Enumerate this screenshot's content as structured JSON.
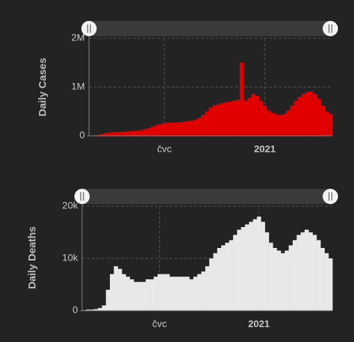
{
  "chart_data": [
    {
      "type": "bar",
      "ylabel": "Daily Cases",
      "color": "#e00000",
      "grid": true,
      "categories": [
        null,
        null,
        null,
        null,
        null,
        null,
        null,
        null,
        null,
        null,
        null,
        null,
        null,
        null,
        null,
        null,
        null,
        null,
        null,
        "čvc",
        null,
        null,
        null,
        null,
        null,
        null,
        null,
        null,
        null,
        null,
        null,
        null,
        null,
        null,
        null,
        null,
        null,
        null,
        null,
        null,
        null,
        null,
        null,
        null,
        null,
        "2021",
        null,
        null,
        null,
        null,
        null,
        null,
        null,
        null,
        null,
        null,
        null,
        null,
        null,
        null,
        null,
        null,
        null
      ],
      "values": [
        5000,
        10000,
        20000,
        40000,
        60000,
        70000,
        80000,
        80000,
        85000,
        90000,
        95000,
        100000,
        110000,
        120000,
        140000,
        160000,
        190000,
        220000,
        240000,
        260000,
        270000,
        270000,
        270000,
        280000,
        290000,
        300000,
        310000,
        330000,
        370000,
        430000,
        500000,
        580000,
        630000,
        650000,
        670000,
        690000,
        700000,
        720000,
        740000,
        1500000,
        720000,
        780000,
        860000,
        820000,
        720000,
        620000,
        520000,
        470000,
        440000,
        430000,
        450000,
        520000,
        620000,
        720000,
        800000,
        860000,
        900000,
        910000,
        860000,
        760000,
        620000,
        500000,
        450000
      ],
      "ylim": [
        0,
        2000000
      ],
      "yticks": [
        0,
        {
          "value": 1000000,
          "label": "1M"
        },
        {
          "value": 2000000,
          "label": "2M"
        }
      ]
    },
    {
      "type": "bar",
      "ylabel": "Daily Deaths",
      "color": "#e8e8e8",
      "grid": true,
      "categories": [
        null,
        null,
        null,
        null,
        null,
        null,
        null,
        null,
        null,
        null,
        null,
        null,
        null,
        null,
        null,
        null,
        null,
        null,
        null,
        "čvc",
        null,
        null,
        null,
        null,
        null,
        null,
        null,
        null,
        null,
        null,
        null,
        null,
        null,
        null,
        null,
        null,
        null,
        null,
        null,
        null,
        null,
        null,
        null,
        null,
        "2021",
        null,
        null,
        null,
        null,
        null,
        null,
        null,
        null,
        null,
        null,
        null,
        null,
        null,
        null,
        null,
        null,
        null,
        null
      ],
      "values": [
        100,
        200,
        200,
        300,
        500,
        1000,
        4000,
        7000,
        8500,
        8000,
        7000,
        6500,
        6000,
        5500,
        5500,
        5500,
        6000,
        6000,
        6500,
        7000,
        7000,
        7000,
        6500,
        6500,
        6500,
        6500,
        6500,
        6000,
        6500,
        7000,
        7500,
        8500,
        10000,
        11000,
        12000,
        12500,
        13000,
        13500,
        14500,
        15500,
        16000,
        16500,
        17000,
        17500,
        18000,
        17000,
        15000,
        13000,
        12000,
        11500,
        11000,
        11500,
        12500,
        13500,
        14500,
        15000,
        15500,
        15000,
        14500,
        13500,
        12000,
        11000,
        10000
      ],
      "ylim": [
        0,
        20000
      ],
      "yticks": [
        0,
        {
          "value": 10000,
          "label": "10k"
        },
        {
          "value": 20000,
          "label": "20k"
        }
      ]
    }
  ]
}
